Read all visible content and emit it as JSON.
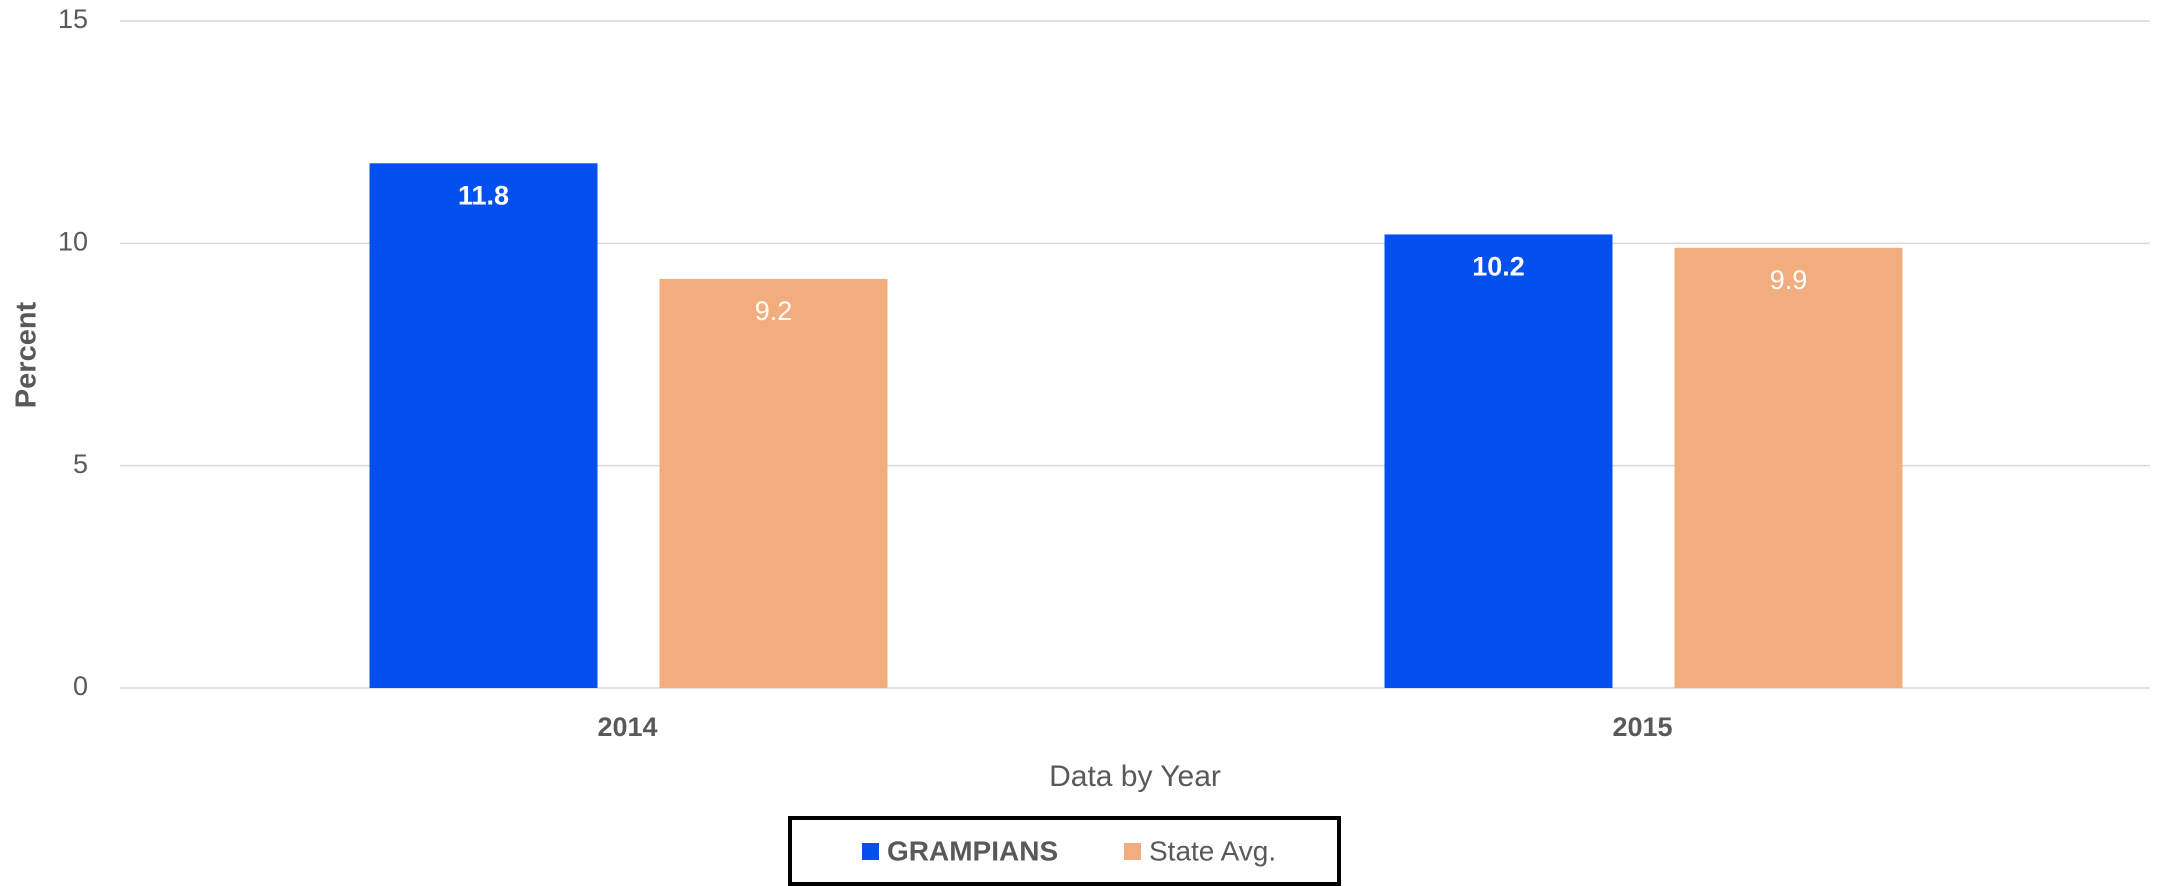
{
  "chart_data": {
    "type": "bar",
    "x_label": "Data by Year",
    "y_label": "Percent",
    "categories": [
      "2014",
      "2015"
    ],
    "series": [
      {
        "name": "GRAMPIANS",
        "color": "#0450ee",
        "values": [
          11.8,
          10.2
        ]
      },
      {
        "name": "State Avg.",
        "color": "#f2ad7e",
        "values": [
          9.2,
          9.9
        ]
      }
    ],
    "ylim": [
      0,
      15
    ],
    "yticks": [
      0,
      5,
      10,
      15
    ],
    "grid": true,
    "legend": "bottom"
  }
}
